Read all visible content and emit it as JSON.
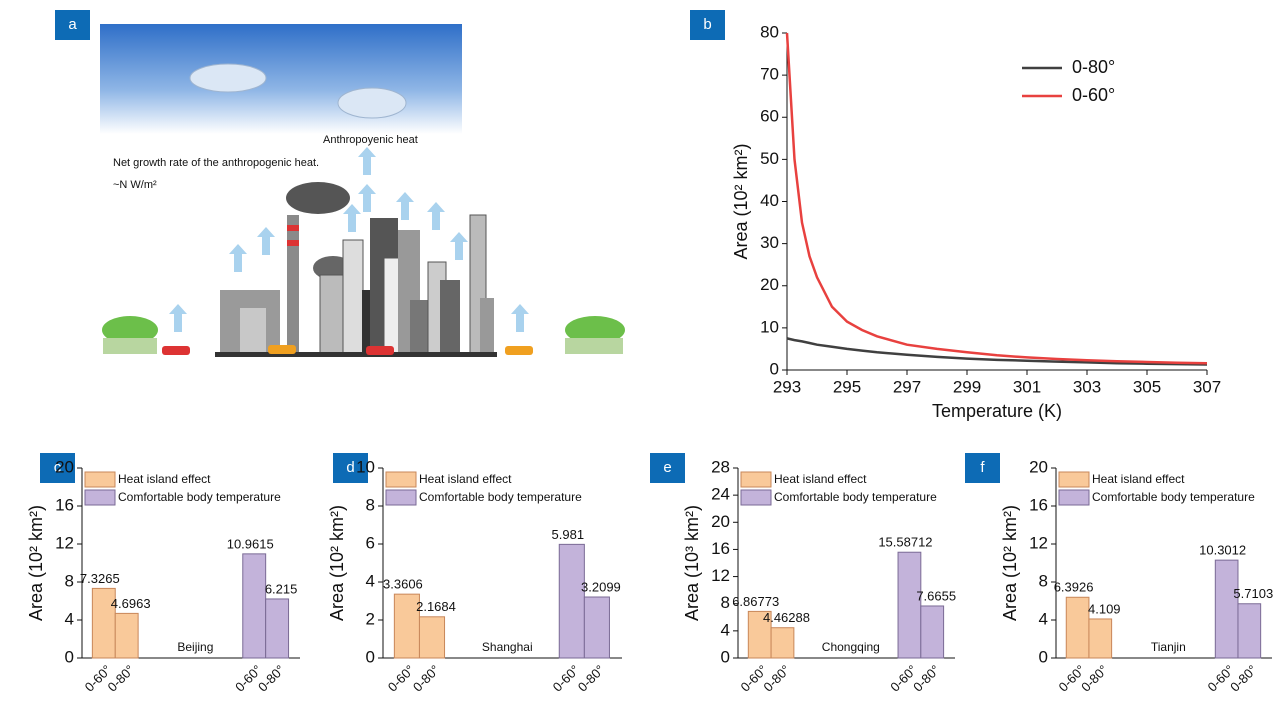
{
  "illustration": {
    "panel_label": "a",
    "heat_label": "Anthropoyenic heat",
    "rate_label": "Net growth rate of the anthropogenic heat.",
    "unit_label": "~N W/m²"
  },
  "chart_data": [
    {
      "type": "line",
      "panel_label": "b",
      "xlabel": "Temperature (K)",
      "ylabel": "Area (10² km²)",
      "x": [
        293,
        293.25,
        293.5,
        293.75,
        294,
        294.5,
        295,
        295.5,
        296,
        297,
        298,
        299,
        300,
        301,
        302,
        303,
        304,
        305,
        306,
        307
      ],
      "series": [
        {
          "name": "0-80°",
          "color": "#404040",
          "values": [
            7.5,
            7.1,
            6.8,
            6.4,
            6,
            5.5,
            5,
            4.6,
            4.2,
            3.6,
            3.1,
            2.7,
            2.4,
            2.2,
            2,
            1.8,
            1.6,
            1.5,
            1.4,
            1.3
          ]
        },
        {
          "name": "0-60°",
          "color": "#e8413f",
          "values": [
            80,
            50,
            35,
            27,
            22,
            15,
            11.5,
            9.5,
            8,
            6,
            5,
            4.2,
            3.5,
            3,
            2.6,
            2.3,
            2.1,
            1.9,
            1.7,
            1.6
          ]
        }
      ],
      "xlim": [
        293,
        307
      ],
      "xticks": [
        293,
        295,
        297,
        299,
        301,
        303,
        305,
        307
      ],
      "ylim": [
        0,
        80
      ],
      "yticks": [
        0,
        10,
        20,
        30,
        40,
        50,
        60,
        70,
        80
      ],
      "legend": "upper right"
    },
    {
      "type": "bar",
      "panel_label": "c",
      "ylabel": "Area (10² km²)",
      "annotation": "Beijing",
      "categories": [
        "0-60°",
        "0-80°",
        "0-60°",
        "0-80°"
      ],
      "series": [
        {
          "name": "Heat island effect",
          "color": "#f9c99a",
          "values": [
            7.3265,
            4.6963,
            null,
            null
          ]
        },
        {
          "name": "Comfortable body temperature",
          "color": "#c3b3da",
          "values": [
            null,
            null,
            10.9615,
            6.215
          ]
        }
      ],
      "ylim": [
        0,
        20
      ],
      "yticks": [
        0,
        4,
        8,
        12,
        16,
        20
      ]
    },
    {
      "type": "bar",
      "panel_label": "d",
      "ylabel": "Area (10² km²)",
      "annotation": "Shanghai",
      "categories": [
        "0-60°",
        "0-80°",
        "0-60°",
        "0-80°"
      ],
      "series": [
        {
          "name": "Heat island effect",
          "color": "#f9c99a",
          "values": [
            3.3606,
            2.1684,
            null,
            null
          ]
        },
        {
          "name": "Comfortable body temperature",
          "color": "#c3b3da",
          "values": [
            null,
            null,
            5.981,
            3.2099
          ]
        }
      ],
      "ylim": [
        0,
        10
      ],
      "yticks": [
        0,
        2,
        4,
        6,
        8,
        10
      ]
    },
    {
      "type": "bar",
      "panel_label": "e",
      "ylabel": "Area (10³ km²)",
      "annotation": "Chongqing",
      "categories": [
        "0-60°",
        "0-80°",
        "0-60°",
        "0-80°"
      ],
      "series": [
        {
          "name": "Heat island effect",
          "color": "#f9c99a",
          "values": [
            6.86773,
            4.46288,
            null,
            null
          ]
        },
        {
          "name": "Comfortable body temperature",
          "color": "#c3b3da",
          "values": [
            null,
            null,
            15.58712,
            7.6655
          ]
        }
      ],
      "ylim": [
        0,
        28
      ],
      "yticks": [
        0,
        4,
        8,
        12,
        16,
        20,
        24,
        28
      ]
    },
    {
      "type": "bar",
      "panel_label": "f",
      "ylabel": "Area (10² km²)",
      "annotation": "Tianjin",
      "categories": [
        "0-60°",
        "0-80°",
        "0-60°",
        "0-80°"
      ],
      "series": [
        {
          "name": "Heat island effect",
          "color": "#f9c99a",
          "values": [
            6.3926,
            4.109,
            null,
            null
          ]
        },
        {
          "name": "Comfortable body temperature",
          "color": "#c3b3da",
          "values": [
            null,
            null,
            10.3012,
            5.7103
          ]
        }
      ],
      "ylim": [
        0,
        20
      ],
      "yticks": [
        0,
        4,
        8,
        12,
        16,
        20
      ]
    }
  ]
}
